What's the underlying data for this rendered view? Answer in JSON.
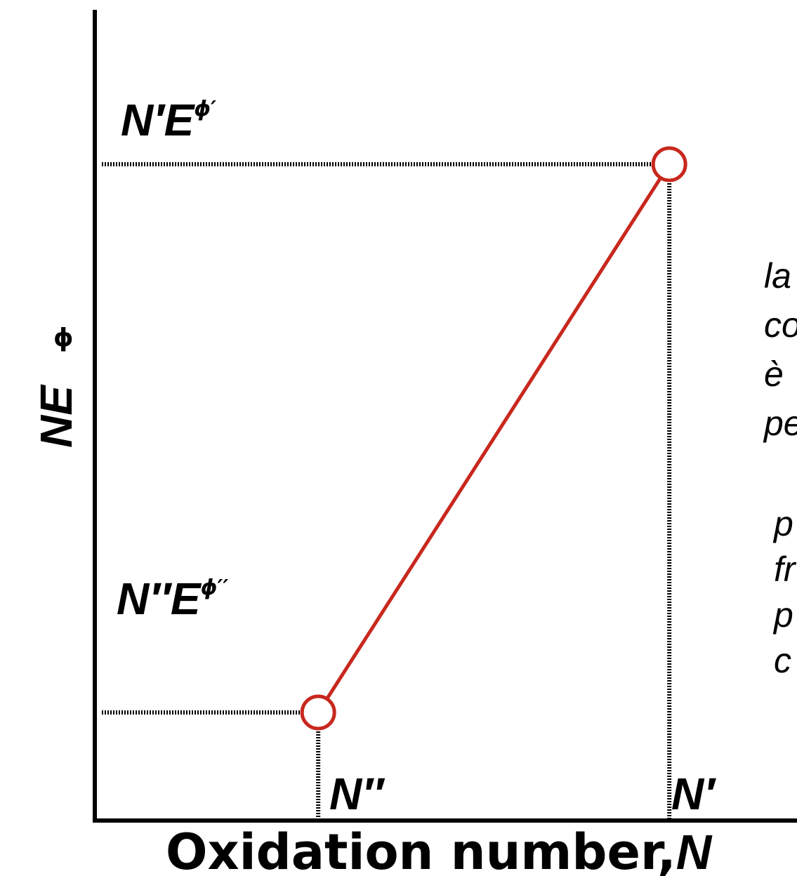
{
  "chart_data": {
    "type": "line",
    "xlabel": "Oxidation number,",
    "xlabel_var": "N",
    "ylabel": "NE",
    "ylabel_sup": "ϕ",
    "x_ticks": [
      "N′′",
      "N′"
    ],
    "y_ticks": [
      {
        "base": "N′′E",
        "sup": "ϕ′′"
      },
      {
        "base": "N′E",
        "sup": "ϕ′"
      }
    ],
    "points": [
      {
        "x": 0.25,
        "y": 0.14
      },
      {
        "x": 0.8,
        "y": 0.85
      }
    ],
    "xlim": [
      -0.1,
      1.0
    ],
    "ylim": [
      0,
      1.05
    ],
    "grid": false,
    "colors": {
      "line": "#c8281e",
      "axis": "#000000",
      "guide": "#000000"
    },
    "side_text": [
      "la",
      "co",
      "è",
      "pe",
      "p",
      "fr",
      "p",
      "c"
    ]
  }
}
